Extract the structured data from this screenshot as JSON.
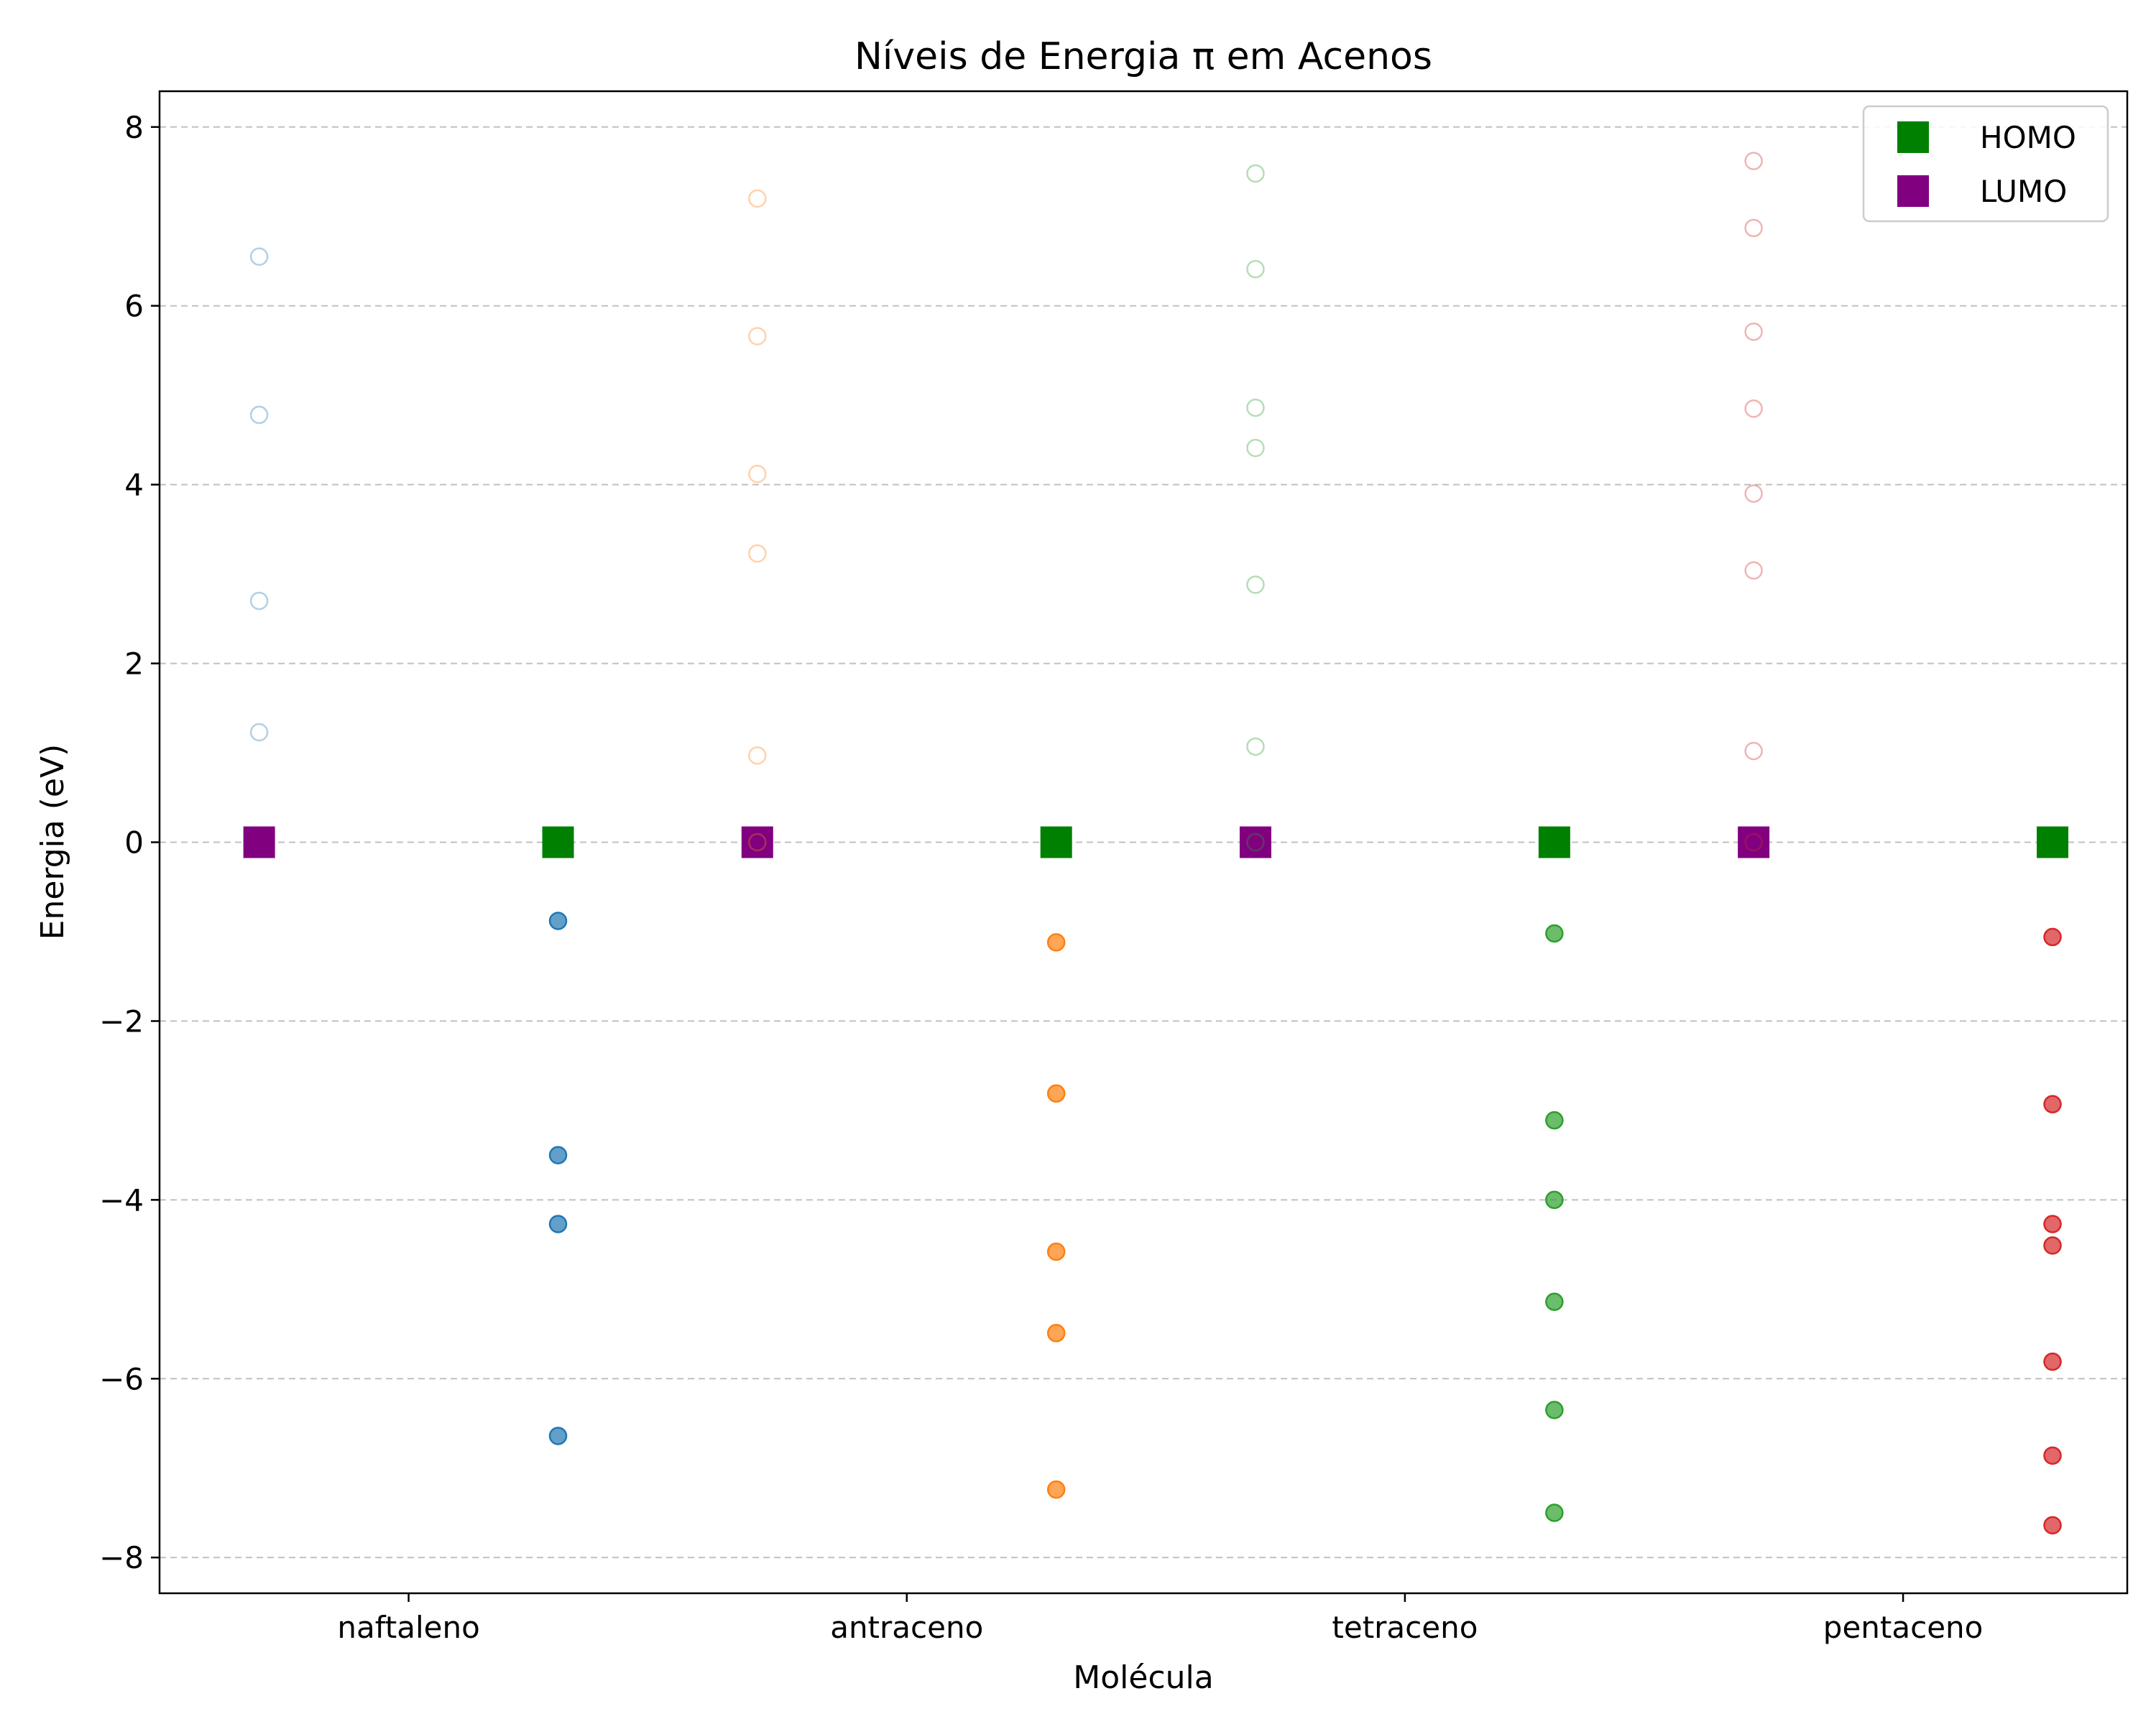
{
  "chart_data": {
    "type": "scatter",
    "title": "Níveis de Energia π em Acenos",
    "xlabel": "Molécula",
    "ylabel": "Energia (eV)",
    "ylim": [
      -8.4,
      8.4
    ],
    "yticks": [
      -8,
      -6,
      -4,
      -2,
      0,
      2,
      4,
      6,
      8
    ],
    "xlim": [
      -0.5,
      3.45
    ],
    "grid": "y-dashed",
    "legend_position": "top-right",
    "categories": [
      "naftaleno",
      "antraceno",
      "tetraceno",
      "pentaceno"
    ],
    "colors": {
      "naftaleno": "#1f77b4",
      "antraceno": "#ff7f0e",
      "tetraceno": "#2ca02c",
      "pentaceno": "#d62728",
      "homo": "#008000",
      "lumo": "#800080"
    },
    "series": [
      {
        "molecule": "naftaleno",
        "unoccupied_x": -0.3,
        "unoccupied": [
          1.23,
          2.7,
          4.78,
          6.55
        ],
        "occupied_x": 0.3,
        "occupied": [
          -0.88,
          -3.5,
          -4.27,
          -6.64
        ]
      },
      {
        "molecule": "antraceno",
        "unoccupied_x": 0.7,
        "unoccupied": [
          0.0,
          0.97,
          3.23,
          4.12,
          5.66,
          7.2
        ],
        "occupied_x": 1.3,
        "occupied": [
          -1.12,
          -2.81,
          -4.58,
          -5.49,
          -7.24
        ]
      },
      {
        "molecule": "tetraceno",
        "unoccupied_x": 1.7,
        "unoccupied": [
          0.0,
          1.07,
          2.88,
          4.41,
          4.86,
          6.41,
          7.48
        ],
        "occupied_x": 2.3,
        "occupied": [
          -1.02,
          -3.11,
          -4.0,
          -5.14,
          -6.35,
          -7.5
        ]
      },
      {
        "molecule": "pentaceno",
        "unoccupied_x": 2.7,
        "unoccupied": [
          0.0,
          1.02,
          3.04,
          3.9,
          4.85,
          5.71,
          6.87,
          7.62
        ],
        "occupied_x": 3.3,
        "occupied": [
          -1.06,
          -2.93,
          -4.27,
          -4.51,
          -5.81,
          -6.86,
          -7.64
        ]
      }
    ],
    "homo": {
      "name": "HOMO",
      "x": [
        0.3,
        1.3,
        2.3,
        3.3
      ],
      "y": [
        0,
        0,
        0,
        0
      ]
    },
    "lumo": {
      "name": "LUMO",
      "x": [
        -0.3,
        0.7,
        1.7,
        2.7
      ],
      "y": [
        0,
        0,
        0,
        0
      ]
    }
  }
}
